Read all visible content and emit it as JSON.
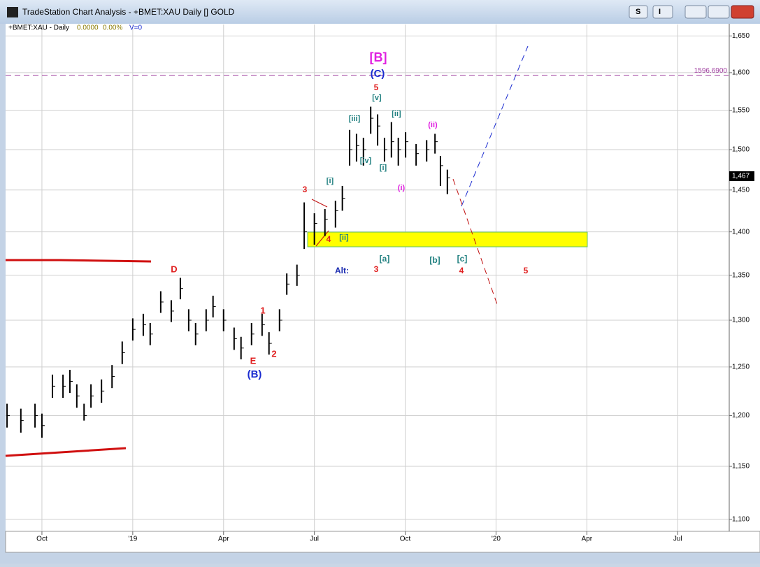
{
  "window": {
    "title": "TradeStation Chart Analysis - +BMET:XAU Daily [] GOLD",
    "buttons": [
      "S",
      "I"
    ]
  },
  "chart_data": {
    "type": "ohlc",
    "header": {
      "symbol": "+BMET:XAU - Daily",
      "change": "0.0000",
      "percent": "0.00%",
      "volume": "V=0"
    },
    "log_scale": true,
    "grid": true,
    "color": "#000000",
    "xlim": [
      2018.65,
      2020.64
    ],
    "xticks": [
      {
        "value": 2018.75,
        "label": "Oct"
      },
      {
        "value": 2019.0,
        "label": "'19"
      },
      {
        "value": 2019.25,
        "label": "Apr"
      },
      {
        "value": 2019.5,
        "label": "Jul"
      },
      {
        "value": 2019.75,
        "label": "Oct"
      },
      {
        "value": 2020.0,
        "label": "'20"
      },
      {
        "value": 2020.25,
        "label": "Apr"
      },
      {
        "value": 2020.5,
        "label": "Jul"
      }
    ],
    "ylim": [
      1089,
      1666
    ],
    "yticks": [
      {
        "value": 1100,
        "label": "1,100"
      },
      {
        "value": 1150,
        "label": "1,150"
      },
      {
        "value": 1200,
        "label": "1,200"
      },
      {
        "value": 1250,
        "label": "1,250"
      },
      {
        "value": 1300,
        "label": "1,300"
      },
      {
        "value": 1350,
        "label": "1,350"
      },
      {
        "value": 1400,
        "label": "1,400"
      },
      {
        "value": 1450,
        "label": "1,450"
      },
      {
        "value": 1500,
        "label": "1,500"
      },
      {
        "value": 1550,
        "label": "1,550"
      },
      {
        "value": 1600,
        "label": "1,600"
      },
      {
        "value": 1650,
        "label": "1,650"
      }
    ],
    "x": [
      2018.654,
      2018.692,
      2018.731,
      2018.75,
      2018.779,
      2018.808,
      2018.827,
      2018.846,
      2018.866,
      2018.885,
      2018.914,
      2018.943,
      2018.971,
      2019.0,
      2019.029,
      2019.048,
      2019.077,
      2019.106,
      2019.131,
      2019.154,
      2019.173,
      2019.202,
      2019.221,
      2019.25,
      2019.279,
      2019.298,
      2019.327,
      2019.356,
      2019.375,
      2019.404,
      2019.424,
      2019.452,
      2019.472,
      2019.5,
      2019.529,
      2019.558,
      2019.577,
      2019.597,
      2019.616,
      2019.635,
      2019.655,
      2019.674,
      2019.693,
      2019.712,
      2019.731,
      2019.751,
      2019.78,
      2019.809,
      2019.832,
      2019.847,
      2019.866
    ],
    "high": [
      1212,
      1207,
      1212,
      1202,
      1242,
      1242,
      1247,
      1232,
      1212,
      1232,
      1237,
      1252,
      1277,
      1302,
      1307,
      1297,
      1332,
      1322,
      1347,
      1312,
      1297,
      1312,
      1327,
      1312,
      1292,
      1282,
      1297,
      1307,
      1287,
      1312,
      1352,
      1362,
      1435,
      1422,
      1427,
      1437,
      1455,
      1525,
      1520,
      1515,
      1555,
      1545,
      1515,
      1535,
      1515,
      1522,
      1507,
      1512,
      1520,
      1492,
      1475
    ],
    "low": [
      1188,
      1183,
      1188,
      1178,
      1218,
      1218,
      1223,
      1208,
      1195,
      1208,
      1213,
      1228,
      1253,
      1278,
      1283,
      1273,
      1308,
      1298,
      1323,
      1288,
      1273,
      1288,
      1303,
      1288,
      1268,
      1258,
      1273,
      1283,
      1263,
      1288,
      1328,
      1338,
      1380,
      1385,
      1395,
      1405,
      1425,
      1480,
      1485,
      1480,
      1520,
      1505,
      1485,
      1490,
      1480,
      1490,
      1480,
      1485,
      1495,
      1455,
      1445
    ],
    "close": [
      1200,
      1195,
      1200,
      1190,
      1230,
      1230,
      1235,
      1220,
      1200,
      1220,
      1225,
      1240,
      1265,
      1290,
      1295,
      1285,
      1320,
      1310,
      1335,
      1300,
      1285,
      1300,
      1315,
      1300,
      1280,
      1270,
      1285,
      1295,
      1275,
      1300,
      1340,
      1350,
      1400,
      1410,
      1415,
      1425,
      1440,
      1500,
      1505,
      1500,
      1540,
      1530,
      1500,
      1510,
      1500,
      1510,
      1495,
      1500,
      1510,
      1480,
      1465
    ],
    "level": {
      "value": 1596.69,
      "label": "1596.6900",
      "color": "#a040a0"
    },
    "last_price": {
      "value": 1467,
      "label": "1,467"
    },
    "annotations": [
      {
        "text": "[B]",
        "color": "#e020e0"
      },
      {
        "text": "(C)",
        "color": "#1a2bd0"
      },
      {
        "text": "5",
        "color": "#e02020"
      },
      {
        "text": "[v]",
        "color": "#208080"
      },
      {
        "text": "[iii]",
        "color": "#208080"
      },
      {
        "text": "[ii]",
        "color": "#208080"
      },
      {
        "text": "(ii)",
        "color": "#e020e0"
      },
      {
        "text": "[iv]",
        "color": "#208080"
      },
      {
        "text": "[i]",
        "color": "#208080"
      },
      {
        "text": "(i)",
        "color": "#e020e0"
      },
      {
        "text": "3",
        "color": "#e02020"
      },
      {
        "text": "[i]",
        "color": "#208080"
      },
      {
        "text": "4",
        "color": "#e02020"
      },
      {
        "text": "[ii]",
        "color": "#208080"
      },
      {
        "text": "[a]",
        "color": "#208080"
      },
      {
        "text": "[b]",
        "color": "#208080"
      },
      {
        "text": "[c]",
        "color": "#208080"
      },
      {
        "text": "Alt:",
        "color": "#1a2bb0"
      },
      {
        "text": "3",
        "color": "#e02020"
      },
      {
        "text": "4",
        "color": "#e02020"
      },
      {
        "text": "5",
        "color": "#e02020"
      },
      {
        "text": "D",
        "color": "#e02020"
      },
      {
        "text": "1",
        "color": "#e02020"
      },
      {
        "text": "2",
        "color": "#e02020"
      },
      {
        "text": "E",
        "color": "#e02020"
      },
      {
        "text": "(B)",
        "color": "#1a2bd0"
      }
    ]
  }
}
